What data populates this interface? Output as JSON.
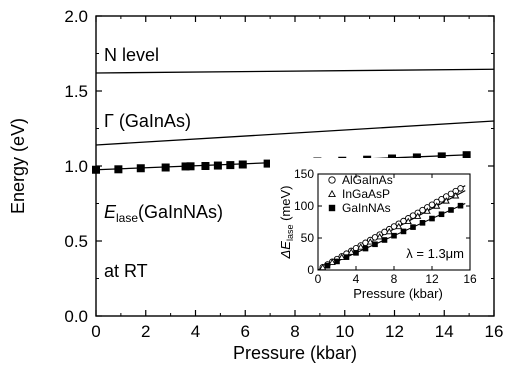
{
  "chart_data": [
    {
      "type": "line",
      "xlabel": "Pressure (kbar)",
      "ylabel": "Energy (eV)",
      "xlim": [
        0,
        16
      ],
      "ylim": [
        0.0,
        2.0
      ],
      "xticks": [
        "0",
        "2",
        "4",
        "6",
        "8",
        "10",
        "12",
        "14",
        "16"
      ],
      "yticks": [
        "0.0",
        "0.5",
        "1.0",
        "1.5",
        "2.0"
      ],
      "series": [
        {
          "name": "N level",
          "style": "line",
          "x": [
            0,
            16
          ],
          "y": [
            1.62,
            1.645
          ]
        },
        {
          "name": "Γ (GaInAs)",
          "style": "line",
          "x": [
            0,
            16
          ],
          "y": [
            1.14,
            1.3
          ]
        },
        {
          "name": "E_lase(GaInNAs)",
          "style": "markers+fit",
          "x": [
            0,
            0.9,
            1.8,
            2.8,
            3.6,
            3.8,
            4.4,
            4.9,
            5.4,
            5.9,
            6.9,
            7.9,
            8.9,
            9.9,
            10.9,
            11.9,
            12.9,
            13.9,
            14.9
          ],
          "y": [
            0.975,
            0.978,
            0.985,
            0.99,
            0.997,
            0.998,
            1.0,
            1.003,
            1.006,
            1.01,
            1.016,
            1.022,
            1.03,
            1.035,
            1.042,
            1.05,
            1.057,
            1.064,
            1.072
          ],
          "fit": {
            "x": [
              0,
              15
            ],
            "y": [
              0.975,
              1.075
            ]
          }
        }
      ],
      "annotations": {
        "n_level": "N level",
        "gamma": "Γ (GaInAs)",
        "elase_main": "E",
        "elase_sub": "lase",
        "elase_rest": "(GaInNAs)",
        "temperature": "at RT"
      }
    },
    {
      "type": "scatter",
      "title": "inset",
      "xlabel": "Pressure (kbar)",
      "ylabel_main": "ΔE",
      "ylabel_sub": "lase",
      "ylabel_unit": " (meV)",
      "xlim": [
        0,
        16
      ],
      "ylim": [
        0,
        150
      ],
      "xticks": [
        "0",
        "4",
        "8",
        "12",
        "16"
      ],
      "yticks": [
        "0",
        "50",
        "100",
        "150"
      ],
      "annotation": "λ = 1.3μm",
      "series": [
        {
          "name": "AlGaInAs",
          "marker": "circle-open",
          "x": [
            0.5,
            1,
            1.5,
            2,
            2.5,
            3,
            3.5,
            4,
            4.5,
            5,
            5.5,
            6,
            6.5,
            7,
            7.5,
            8,
            8.5,
            9,
            9.5,
            10,
            10.5,
            11,
            11.5,
            12,
            12.5,
            13,
            13.5,
            14,
            14.5,
            15
          ],
          "y": [
            4.3,
            8.5,
            12.8,
            17,
            21.3,
            25.5,
            29.8,
            34,
            38.3,
            42.5,
            46.8,
            51,
            55.3,
            59.5,
            63.8,
            68,
            72.3,
            76.5,
            80.8,
            85,
            89.3,
            93.5,
            97.8,
            102,
            106.3,
            110.5,
            114.8,
            119,
            123.3,
            127.5
          ]
        },
        {
          "name": "InGaAsP",
          "marker": "triangle-open",
          "x": [
            0.5,
            1.5,
            2.5,
            3.5,
            4.5,
            5.5,
            6.5,
            7.5,
            8.5,
            9.5,
            10.5,
            11.5,
            12.5,
            13.5,
            14.5
          ],
          "y": [
            4,
            12,
            20,
            28,
            36,
            44,
            52,
            60,
            68,
            76,
            84,
            92,
            100,
            108,
            116
          ]
        },
        {
          "name": "GaInNAs",
          "marker": "square-filled",
          "x": [
            1,
            2,
            3,
            4,
            5,
            6,
            7,
            8,
            9,
            10,
            11,
            12,
            13,
            14,
            15
          ],
          "y": [
            6.7,
            13.4,
            20.1,
            26.8,
            33.5,
            40.2,
            46.9,
            53.6,
            60.3,
            67,
            73.7,
            80.4,
            87.1,
            93.8,
            100.5
          ]
        }
      ],
      "fit_lines": [
        {
          "x": [
            0,
            15.5
          ],
          "y": [
            0,
            131.8
          ]
        },
        {
          "x": [
            0,
            15.5
          ],
          "y": [
            0,
            124
          ]
        },
        {
          "x": [
            0,
            15.5
          ],
          "y": [
            0,
            103.9
          ]
        }
      ]
    }
  ]
}
